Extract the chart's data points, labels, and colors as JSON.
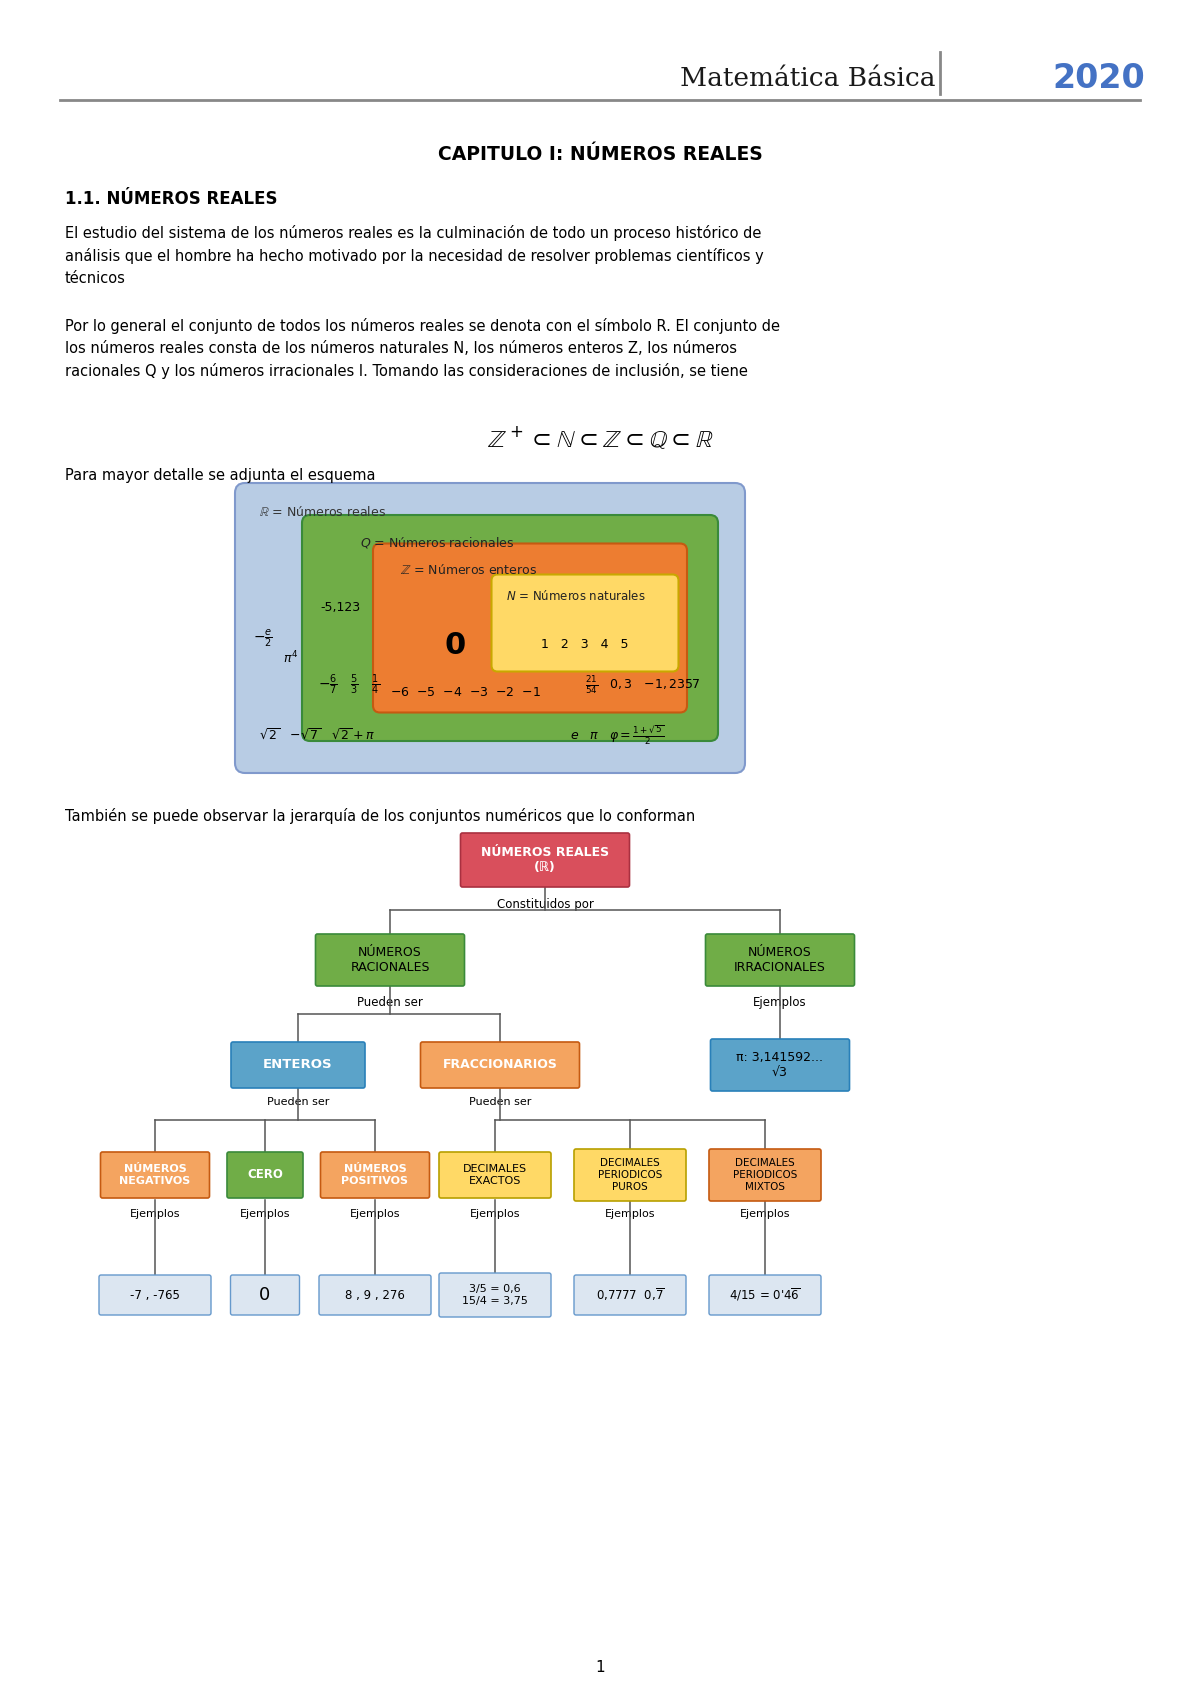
{
  "bg_color": "#ffffff",
  "header_title": "Matemática Básica",
  "header_year": "2020",
  "header_title_color": "#1a1a1a",
  "header_year_color": "#4472c4",
  "line_color": "#808080",
  "chapter_title": "CAPITULO I: NÚMEROS REALES",
  "section_title": "1.1. NÚMEROS REALES",
  "para1_line1": "El estudio del sistema de los números reales es la culminación de todo un proceso histórico de",
  "para1_line2": "análisis que el hombre ha hecho motivado por la necesidad de resolver problemas científicos y",
  "para1_line3": "técnicos",
  "para2_line1": "Por lo general el conjunto de todos los números reales se denota con el símbolo R. El conjunto de",
  "para2_line2": "los números reales consta de los números naturales N, los números enteros Z, los números",
  "para2_line3": "racionales Q y los números irracionales I. Tomando las consideraciones de inclusión, se tiene",
  "para3": "Para mayor detalle se adjunta el esquema",
  "para4": "También se puede observar la jerarquía de los conjuntos numéricos que lo conforman",
  "page_num": "1"
}
